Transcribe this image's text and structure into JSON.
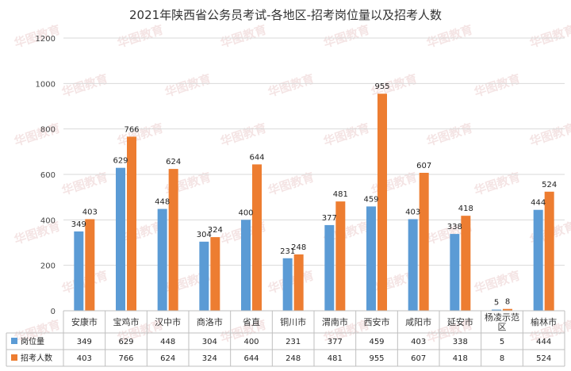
{
  "chart_data": {
    "type": "bar",
    "title": "2021年陕西省公务员考试-各地区-招考岗位量以及招考人数",
    "categories": [
      "安康市",
      "宝鸡市",
      "汉中市",
      "商洛市",
      "省直",
      "铜川市",
      "渭南市",
      "西安市",
      "咸阳市",
      "延安市",
      "杨凌示范区",
      "榆林市"
    ],
    "series": [
      {
        "name": "岗位量",
        "values": [
          349,
          629,
          448,
          304,
          400,
          231,
          377,
          459,
          403,
          338,
          5,
          444
        ]
      },
      {
        "name": "招考人数",
        "values": [
          403,
          766,
          624,
          324,
          644,
          248,
          481,
          955,
          607,
          418,
          8,
          524
        ]
      }
    ],
    "ylim": [
      0,
      1200
    ],
    "yticks": [
      0,
      200,
      400,
      600,
      800,
      1000,
      1200
    ],
    "grid": true,
    "legend": "data-table",
    "xlabel": "",
    "ylabel": "",
    "colors": {
      "岗位量": "#5b9bd5",
      "招考人数": "#ed7d31"
    },
    "watermark": "华图教育"
  }
}
